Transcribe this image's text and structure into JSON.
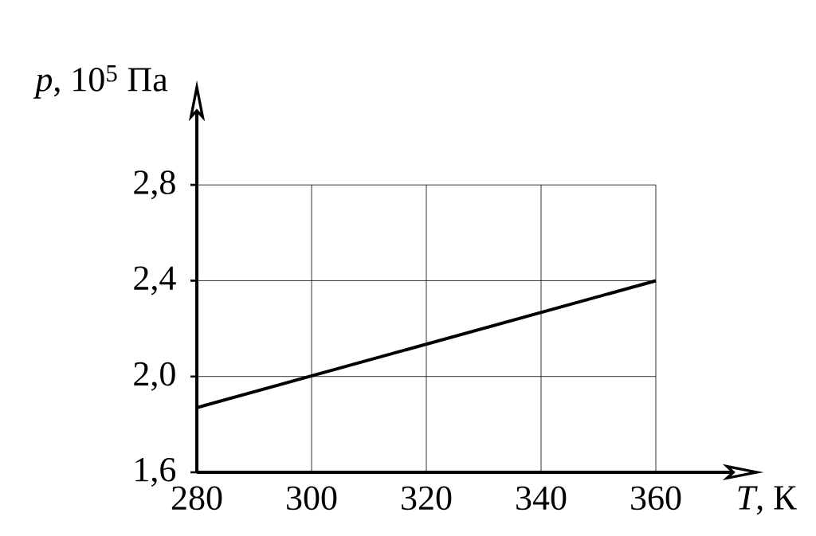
{
  "chart_data": {
    "type": "line",
    "xlabel": "*T*, К",
    "ylabel": "*p*, 10$^{5}$ Па",
    "x": [
      280,
      360
    ],
    "series": [
      {
        "color": "#000000",
        "values": [
          1.87,
          2.4
        ]
      }
    ],
    "xlim": [
      280,
      360
    ],
    "ylim": [
      1.6,
      2.8
    ],
    "xticks": [
      280,
      300,
      320,
      340,
      360
    ],
    "yticks": [
      {
        "value": 1.6,
        "label": "1,6"
      },
      {
        "value": 2.0,
        "label": "2,0"
      },
      {
        "value": 2.4,
        "label": "2,4"
      },
      {
        "value": 2.8,
        "label": "2,8"
      }
    ],
    "grid": true,
    "marker": "none",
    "line_style": "solid"
  }
}
